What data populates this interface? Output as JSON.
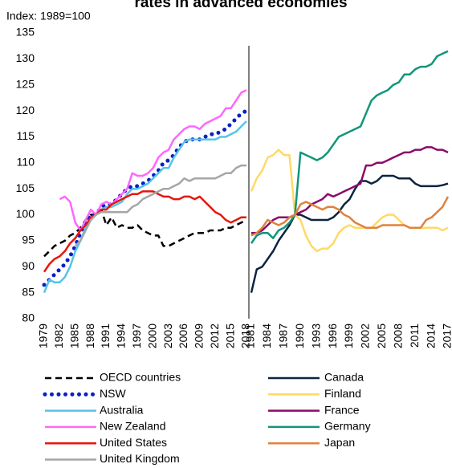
{
  "chart_data": [
    {
      "type": "line",
      "title": "rates in advanced economies",
      "y_label": "Index: 1989=100",
      "x": [
        1979,
        1980,
        1981,
        1982,
        1983,
        1984,
        1985,
        1986,
        1987,
        1988,
        1989,
        1990,
        1991,
        1992,
        1993,
        1994,
        1995,
        1996,
        1997,
        1998,
        1999,
        2000,
        2001,
        2002,
        2003,
        2004,
        2005,
        2006,
        2007,
        2008,
        2009,
        2010,
        2011,
        2012,
        2013,
        2014,
        2015,
        2016,
        2017,
        2018
      ],
      "xlim": [
        1979,
        2018
      ],
      "xticks": [
        1979,
        1982,
        1985,
        1988,
        1991,
        1994,
        1997,
        2000,
        2003,
        2006,
        2009,
        2012,
        2015,
        2018
      ],
      "ylim": [
        80,
        135
      ],
      "yticks": [
        80,
        85,
        90,
        95,
        100,
        105,
        110,
        115,
        120,
        125,
        130,
        135
      ],
      "series": [
        {
          "name": "OECD countries",
          "color": "#000000",
          "style": "dashed",
          "values": [
            92,
            93,
            94,
            94.5,
            95,
            96,
            96.5,
            97.5,
            99,
            100,
            100,
            101,
            98,
            99.5,
            97.5,
            98,
            97.5,
            97.5,
            98,
            97,
            96.5,
            96,
            96,
            94,
            94,
            94.5,
            95,
            95.5,
            96,
            96.5,
            96.5,
            96.5,
            97,
            97,
            97,
            97.5,
            97.5,
            98,
            98.5,
            99
          ]
        },
        {
          "name": "NSW",
          "color": "#0a1fc4",
          "style": "dotted",
          "values": [
            86.5,
            87.5,
            88.5,
            89.5,
            90.5,
            92,
            94,
            96.5,
            98.5,
            100,
            100,
            101.5,
            102,
            102,
            103,
            104,
            105,
            105.5,
            105.5,
            106,
            106.5,
            107.5,
            108.5,
            110,
            110.5,
            111.5,
            113,
            114,
            114.5,
            114.5,
            114.5,
            115,
            115.5,
            115.5,
            116,
            116.5,
            117.5,
            118.5,
            119.5,
            120
          ]
        },
        {
          "name": "Australia",
          "color": "#55c4ea",
          "style": "solid",
          "values": [
            85,
            87.5,
            87,
            87,
            88,
            90,
            93,
            95,
            97.5,
            99,
            100,
            101,
            101.5,
            101.5,
            102,
            102.5,
            104,
            105,
            105,
            105.5,
            106,
            107,
            108,
            109,
            109,
            111,
            112.5,
            114,
            114.5,
            114.5,
            114.5,
            114.5,
            114.5,
            114.5,
            115,
            115,
            115.5,
            116,
            117,
            118
          ]
        },
        {
          "name": "New Zealand",
          "color": "#ff66ff",
          "style": "solid",
          "values": [
            null,
            null,
            null,
            103,
            103.5,
            102.5,
            98.5,
            97,
            99,
            101,
            100,
            102,
            102.5,
            102,
            103,
            104,
            105,
            108,
            107.5,
            107.5,
            108,
            109,
            111,
            112,
            112.5,
            114.5,
            115.5,
            116.5,
            117,
            117,
            116.5,
            117.5,
            118,
            118.5,
            119,
            120.5,
            120.5,
            122,
            123.5,
            124
          ]
        },
        {
          "name": "United States",
          "color": "#e8160c",
          "style": "solid",
          "values": [
            89,
            90.5,
            91.5,
            92,
            93,
            94.5,
            95.5,
            97,
            98,
            99.5,
            100,
            101,
            101,
            102,
            102.5,
            103,
            103.5,
            104,
            104,
            104.5,
            104.5,
            104.5,
            104,
            103.5,
            103.5,
            103,
            103,
            103.5,
            103.5,
            103,
            103.5,
            102.5,
            101.5,
            100.5,
            100,
            99,
            98.5,
            99,
            99.5,
            99.5
          ]
        },
        {
          "name": "United Kingdom",
          "color": "#a6a6a6",
          "style": "solid",
          "values": [
            null,
            null,
            null,
            null,
            null,
            null,
            94,
            95,
            97,
            99,
            100,
            100.5,
            100.5,
            100.5,
            100.5,
            100.5,
            100.5,
            101.5,
            102,
            103,
            103.5,
            104,
            104.5,
            105,
            105,
            105.5,
            106,
            107,
            106.5,
            107,
            107,
            107,
            107,
            107,
            107.5,
            108,
            108,
            109,
            109.5,
            109.5
          ]
        }
      ]
    },
    {
      "type": "line",
      "x": [
        1981,
        1982,
        1983,
        1984,
        1985,
        1986,
        1987,
        1988,
        1989,
        1990,
        1991,
        1992,
        1993,
        1994,
        1995,
        1996,
        1997,
        1998,
        1999,
        2000,
        2001,
        2002,
        2003,
        2004,
        2005,
        2006,
        2007,
        2008,
        2009,
        2010,
        2011,
        2012,
        2013,
        2014,
        2015,
        2016,
        2017
      ],
      "xlim": [
        1981,
        2017
      ],
      "xticks": [
        1981,
        1984,
        1987,
        1990,
        1993,
        1996,
        1999,
        2002,
        2005,
        2008,
        2011,
        2014,
        2017
      ],
      "ylim": [
        80,
        135
      ],
      "series": [
        {
          "name": "Canada",
          "color": "#0c2440",
          "style": "solid",
          "values": [
            85,
            89.5,
            90,
            91.5,
            93,
            95,
            96.5,
            98,
            100,
            100,
            99.5,
            99,
            99,
            99,
            99,
            99.5,
            100.5,
            102,
            103,
            105,
            106.5,
            106.5,
            106,
            106.5,
            107.5,
            107.5,
            107.5,
            107,
            107,
            107,
            106,
            105.5,
            105.5,
            105.5,
            105.5,
            105.7,
            106
          ]
        },
        {
          "name": "Finland",
          "color": "#ffd966",
          "style": "solid",
          "values": [
            104.5,
            107,
            108.5,
            111,
            111.5,
            112.5,
            111.5,
            111.5,
            100,
            99,
            96,
            94,
            93,
            93.5,
            93.5,
            94.5,
            96.5,
            97.5,
            98,
            97.5,
            97.5,
            97.5,
            97.5,
            98.5,
            99.5,
            100,
            100,
            99,
            98,
            97.5,
            97.5,
            97.5,
            97.5,
            97.5,
            97.5,
            97,
            97.5
          ]
        },
        {
          "name": "France",
          "color": "#8b0a6b",
          "style": "solid",
          "values": [
            96.5,
            96.5,
            97,
            98,
            99,
            99.5,
            99.5,
            99.5,
            100,
            100.5,
            101,
            102,
            102.5,
            103,
            104,
            103.5,
            104,
            104.5,
            105,
            105.5,
            106,
            109.5,
            109.5,
            110,
            110,
            110.5,
            111,
            111.5,
            112,
            112,
            112.5,
            112.5,
            113,
            113,
            112.5,
            112.5,
            112
          ]
        },
        {
          "name": "Germany",
          "color": "#12957a",
          "style": "solid",
          "values": [
            94.5,
            96,
            96.5,
            96.5,
            95.5,
            97,
            97.5,
            98.5,
            100,
            112,
            111.5,
            111,
            110.5,
            111,
            112,
            113.5,
            115,
            115.5,
            116,
            116.5,
            117,
            119.5,
            122,
            123,
            123.5,
            124,
            125,
            125.5,
            127,
            127,
            128,
            128.5,
            128.5,
            129,
            130.5,
            131,
            131.5
          ]
        },
        {
          "name": "Japan",
          "color": "#e0823c",
          "style": "solid",
          "values": [
            96,
            96.5,
            97.5,
            99,
            98.5,
            98,
            98.5,
            99.5,
            100,
            102,
            102.5,
            102,
            101.5,
            101,
            101.5,
            101.5,
            101,
            100,
            99.5,
            98.5,
            98,
            97.5,
            97.5,
            97.5,
            98,
            98,
            98,
            98,
            98,
            97.5,
            97.5,
            97.5,
            99,
            99.5,
            100.5,
            101.5,
            103.5
          ]
        }
      ]
    }
  ]
}
